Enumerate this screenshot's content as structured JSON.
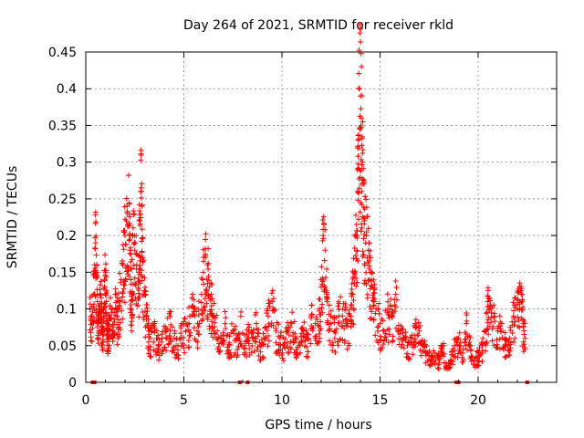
{
  "chart_data": {
    "type": "scatter",
    "title": "Day 264 of 2021, SRMTID for receiver rkld",
    "xlabel": "GPS time / hours",
    "ylabel": "SRMTID / TECUs",
    "xlim": [
      0,
      24
    ],
    "ylim": [
      0,
      0.45
    ],
    "xticks": [
      0,
      5,
      10,
      15,
      20
    ],
    "yticks": [
      0,
      0.05,
      0.1,
      0.15,
      0.2,
      0.25,
      0.3,
      0.35,
      0.4,
      0.45
    ],
    "xtick_labels": [
      "0",
      "5",
      "10",
      "15",
      "20"
    ],
    "ytick_labels": [
      "0",
      "0.05",
      "0.1",
      "0.15",
      "0.2",
      "0.25",
      "0.3",
      "0.35",
      "0.4",
      "0.45"
    ],
    "grid": true,
    "marker": "+",
    "color": "#ff0000",
    "series": [
      {
        "name": "SRMTID",
        "x": [
          0.2,
          0.3,
          0.4,
          0.45,
          0.5,
          0.55,
          0.6,
          0.65,
          0.7,
          0.75,
          0.8,
          0.85,
          0.9,
          0.95,
          1.0,
          1.05,
          1.1,
          1.15,
          1.2,
          1.3,
          1.4,
          1.5,
          1.6,
          1.7,
          1.8,
          1.9,
          2.0,
          2.1,
          2.2,
          2.25,
          2.3,
          2.35,
          2.4,
          2.5,
          2.6,
          2.7,
          2.75,
          2.8,
          2.85,
          2.9,
          3.0,
          3.1,
          3.2,
          3.3,
          3.5,
          3.7,
          3.9,
          4.1,
          4.3,
          4.5,
          4.7,
          4.9,
          5.1,
          5.3,
          5.5,
          5.7,
          5.9,
          6.0,
          6.1,
          6.2,
          6.3,
          6.4,
          6.5,
          6.7,
          6.9,
          7.1,
          7.3,
          7.5,
          7.7,
          7.9,
          8.1,
          8.3,
          8.5,
          8.7,
          8.9,
          9.1,
          9.3,
          9.5,
          9.7,
          9.9,
          10.1,
          10.3,
          10.5,
          10.7,
          10.9,
          11.1,
          11.3,
          11.5,
          11.7,
          11.9,
          12.0,
          12.1,
          12.2,
          12.3,
          12.5,
          12.7,
          12.9,
          13.1,
          13.3,
          13.5,
          13.6,
          13.7,
          13.8,
          13.85,
          13.9,
          13.95,
          14.0,
          14.05,
          14.1,
          14.15,
          14.2,
          14.3,
          14.4,
          14.5,
          14.6,
          14.7,
          14.8,
          15.0,
          15.2,
          15.4,
          15.6,
          15.8,
          16.0,
          16.2,
          16.4,
          16.6,
          16.8,
          17.0,
          17.2,
          17.4,
          17.6,
          17.8,
          18.0,
          18.2,
          18.4,
          18.6,
          18.8,
          19.0,
          19.2,
          19.4,
          19.6,
          19.8,
          20.0,
          20.2,
          20.4,
          20.5,
          20.6,
          20.8,
          21.0,
          21.2,
          21.4,
          21.6,
          21.8,
          22.0,
          22.1,
          22.2,
          22.3,
          22.4
        ],
        "y": [
          0.1,
          0.09,
          0.12,
          0.16,
          0.19,
          0.15,
          0.11,
          0.09,
          0.08,
          0.12,
          0.1,
          0.07,
          0.09,
          0.13,
          0.15,
          0.11,
          0.08,
          0.06,
          0.09,
          0.1,
          0.07,
          0.12,
          0.09,
          0.11,
          0.14,
          0.16,
          0.2,
          0.24,
          0.23,
          0.18,
          0.14,
          0.12,
          0.2,
          0.18,
          0.16,
          0.15,
          0.22,
          0.26,
          0.24,
          0.17,
          0.12,
          0.09,
          0.07,
          0.06,
          0.08,
          0.05,
          0.06,
          0.07,
          0.09,
          0.06,
          0.05,
          0.08,
          0.07,
          0.09,
          0.1,
          0.08,
          0.12,
          0.15,
          0.17,
          0.16,
          0.13,
          0.12,
          0.09,
          0.07,
          0.06,
          0.08,
          0.05,
          0.07,
          0.06,
          0.09,
          0.05,
          0.07,
          0.06,
          0.08,
          0.05,
          0.06,
          0.09,
          0.11,
          0.07,
          0.06,
          0.05,
          0.07,
          0.08,
          0.06,
          0.05,
          0.07,
          0.06,
          0.09,
          0.08,
          0.1,
          0.13,
          0.2,
          0.18,
          0.11,
          0.08,
          0.07,
          0.09,
          0.1,
          0.08,
          0.09,
          0.12,
          0.15,
          0.2,
          0.26,
          0.33,
          0.4,
          0.39,
          0.36,
          0.3,
          0.27,
          0.22,
          0.2,
          0.18,
          0.15,
          0.13,
          0.11,
          0.1,
          0.08,
          0.07,
          0.1,
          0.09,
          0.12,
          0.07,
          0.06,
          0.05,
          0.06,
          0.08,
          0.07,
          0.05,
          0.04,
          0.03,
          0.04,
          0.03,
          0.05,
          0.02,
          0.03,
          0.05,
          0.06,
          0.04,
          0.08,
          0.05,
          0.03,
          0.04,
          0.05,
          0.07,
          0.11,
          0.1,
          0.09,
          0.07,
          0.08,
          0.05,
          0.06,
          0.09,
          0.1,
          0.13,
          0.12,
          0.08,
          0.06
        ]
      }
    ],
    "zero_marks_x": [
      0.35,
      0.45,
      7.85,
      8.25,
      18.9,
      19.0,
      22.5
    ]
  }
}
